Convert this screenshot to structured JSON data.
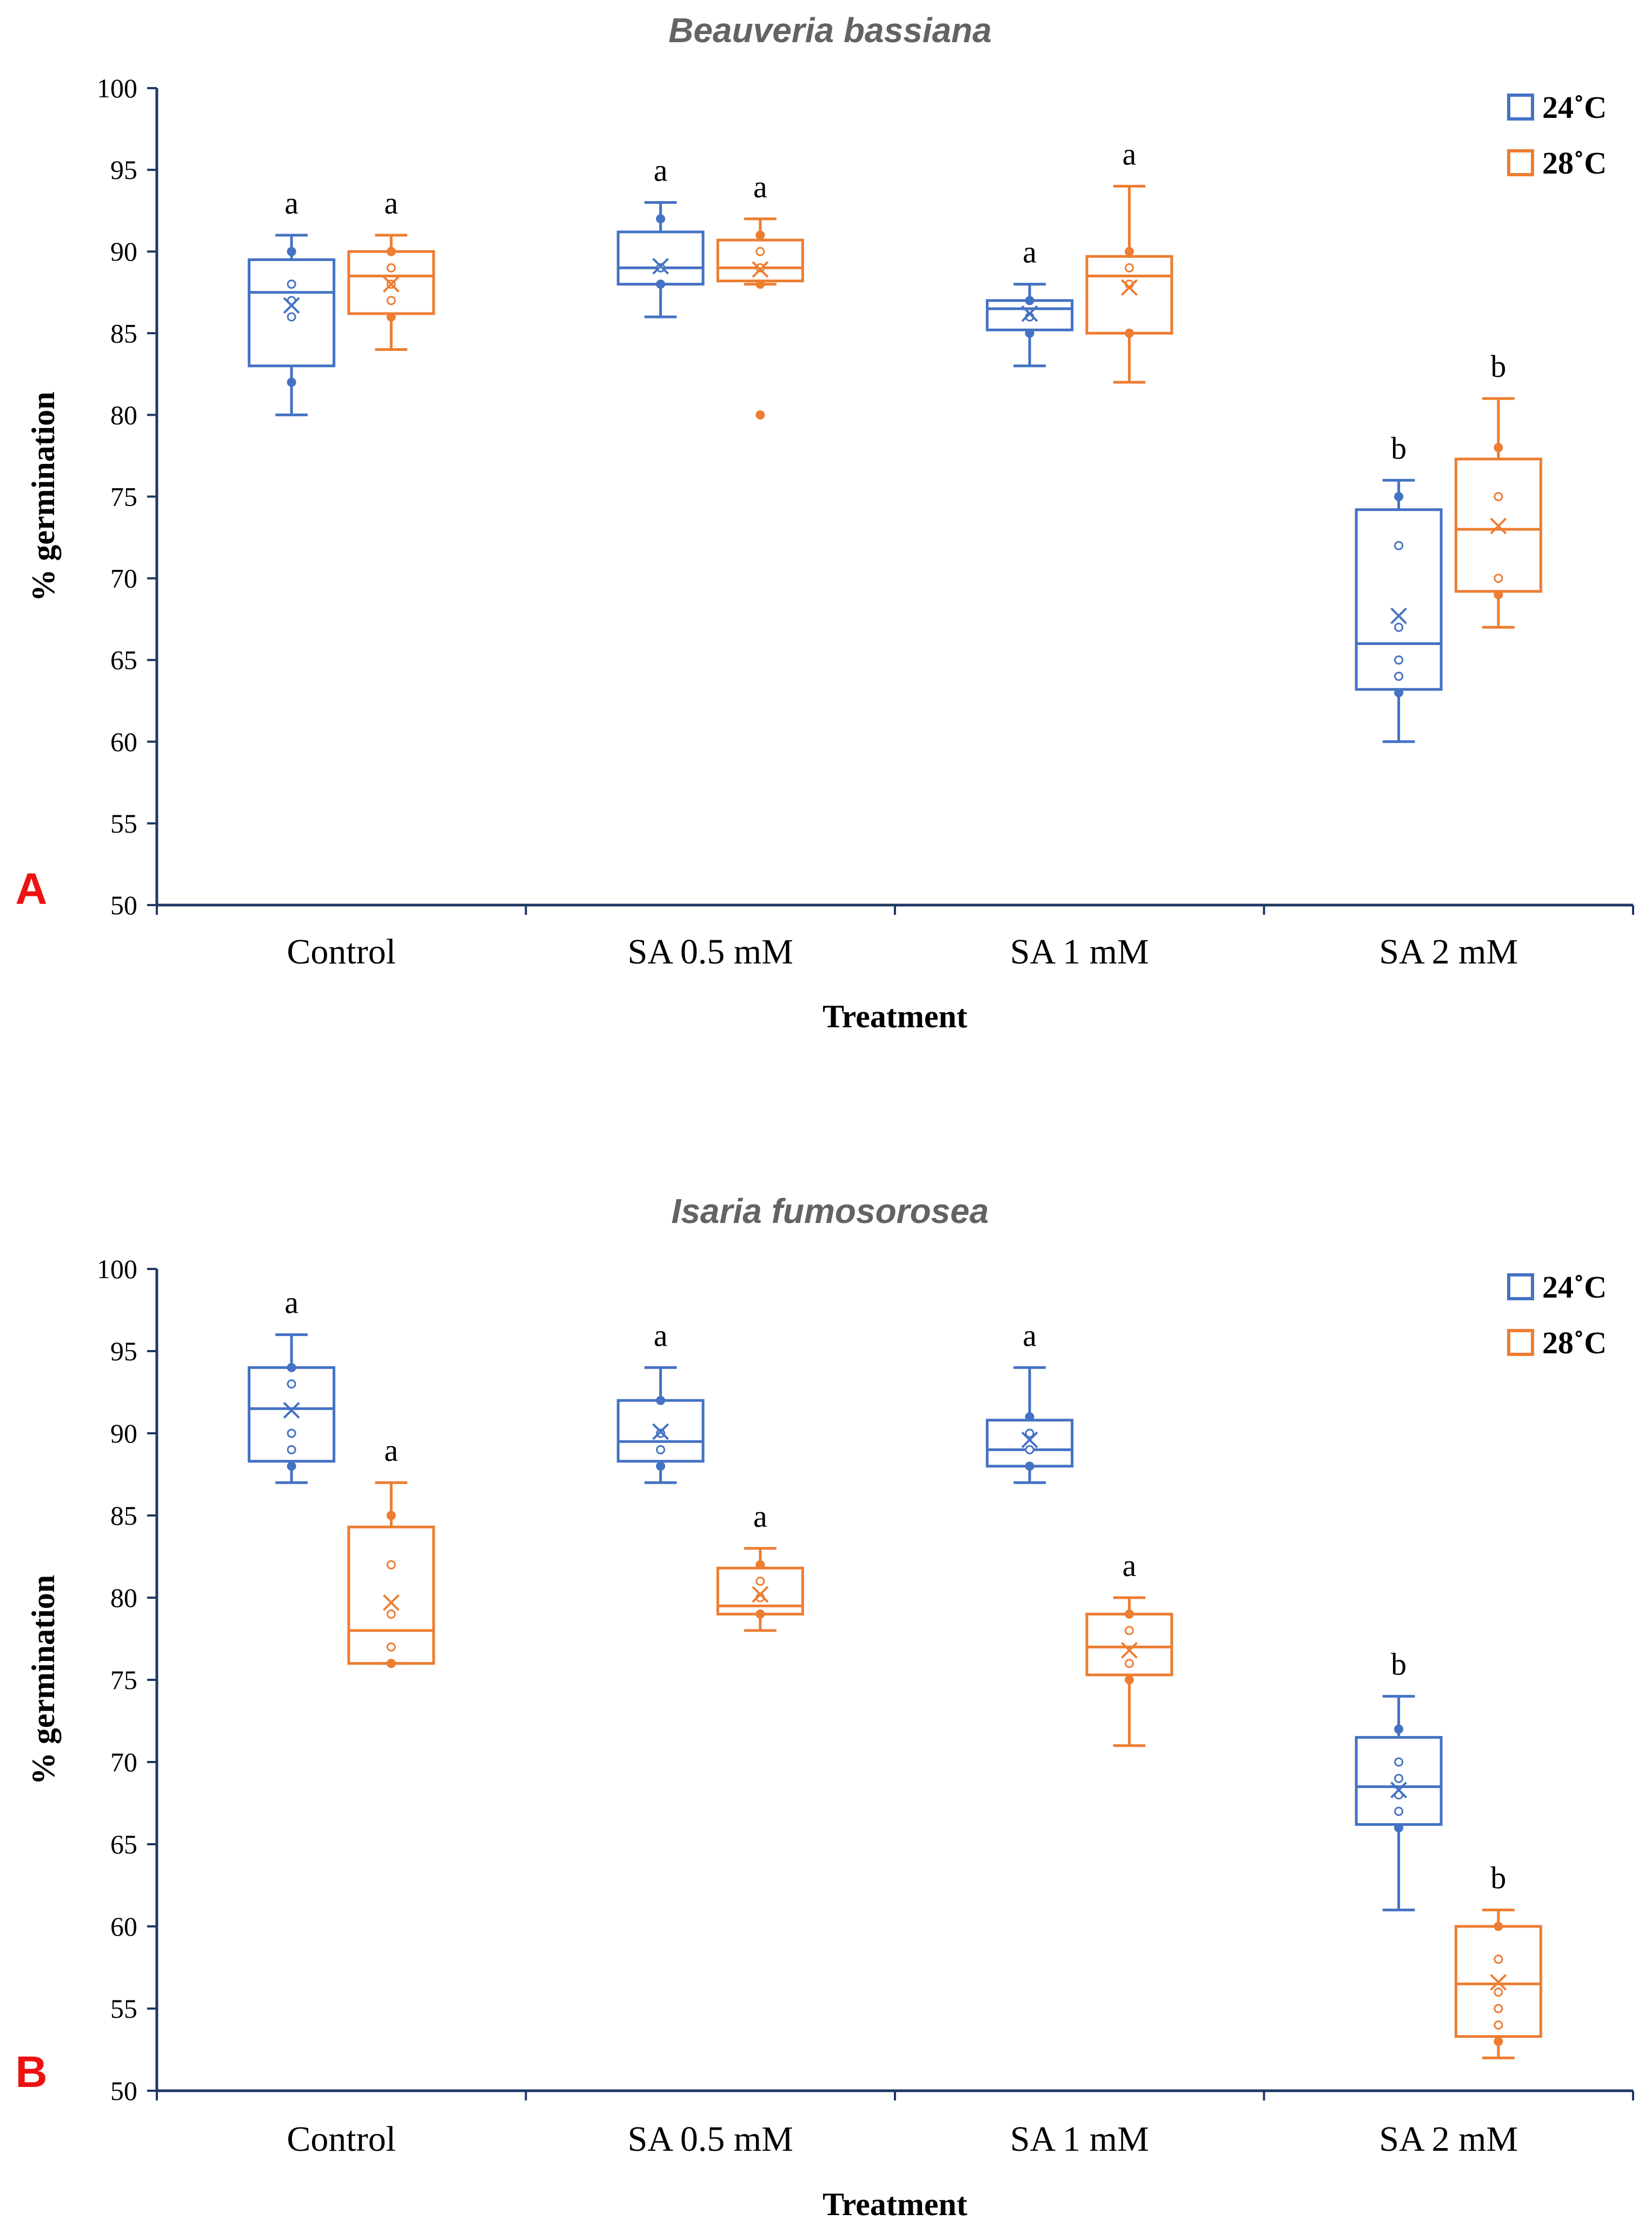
{
  "colors": {
    "series_24": "#4472C4",
    "series_28": "#ED7D31",
    "axis": "#1F3864"
  },
  "chart_data": [
    {
      "type": "box",
      "panel_label": "A",
      "title": "Beauveria bassiana",
      "xlabel": "Treatment",
      "ylabel": "% germination",
      "ylim": [
        50,
        100
      ],
      "yticks": [
        50,
        55,
        60,
        65,
        70,
        75,
        80,
        85,
        90,
        95,
        100
      ],
      "categories": [
        "Control",
        "SA 0.5 mM",
        "SA 1 mM",
        "SA 2 mM"
      ],
      "legend_position": "top-right",
      "series": [
        {
          "name": "24˚C",
          "boxes": [
            {
              "q1": 83,
              "median": 87.5,
              "q3": 89.5,
              "min": 80,
              "max": 91,
              "mean": 86.7,
              "points": [
                82,
                86,
                87,
                88,
                90
              ],
              "letter": "a"
            },
            {
              "q1": 88,
              "median": 89,
              "q3": 91.2,
              "min": 86,
              "max": 93,
              "mean": 89.1,
              "points": [
                88,
                89,
                92
              ],
              "letter": "a"
            },
            {
              "q1": 85.2,
              "median": 86.5,
              "q3": 87,
              "min": 83,
              "max": 88,
              "mean": 86.2,
              "points": [
                85,
                86,
                87
              ],
              "letter": "a"
            },
            {
              "q1": 63.2,
              "median": 66,
              "q3": 74.2,
              "min": 60,
              "max": 76,
              "mean": 67.7,
              "points": [
                63,
                64,
                65,
                67,
                72,
                75
              ],
              "letter": "b"
            }
          ]
        },
        {
          "name": "28˚C",
          "boxes": [
            {
              "q1": 86.2,
              "median": 88.5,
              "q3": 90,
              "min": 84,
              "max": 91,
              "mean": 88.0,
              "points": [
                86,
                87,
                88,
                89,
                90
              ],
              "letter": "a"
            },
            {
              "q1": 88.2,
              "median": 89,
              "q3": 90.7,
              "min": 88,
              "max": 92,
              "mean": 88.9,
              "points": [
                80,
                88,
                89,
                90,
                91
              ],
              "letter": "a"
            },
            {
              "q1": 85,
              "median": 88.5,
              "q3": 89.7,
              "min": 82,
              "max": 94,
              "mean": 87.8,
              "points": [
                85,
                88,
                89,
                90
              ],
              "letter": "a"
            },
            {
              "q1": 69.2,
              "median": 73,
              "q3": 77.3,
              "min": 67,
              "max": 81,
              "mean": 73.2,
              "points": [
                69,
                70,
                75,
                78
              ],
              "letter": "b"
            }
          ]
        }
      ]
    },
    {
      "type": "box",
      "panel_label": "B",
      "title": "Isaria fumosorosea",
      "xlabel": "Treatment",
      "ylabel": "% germination",
      "ylim": [
        50,
        100
      ],
      "yticks": [
        50,
        55,
        60,
        65,
        70,
        75,
        80,
        85,
        90,
        95,
        100
      ],
      "categories": [
        "Control",
        "SA 0.5 mM",
        "SA 1 mM",
        "SA 2 mM"
      ],
      "legend_position": "top-right",
      "series": [
        {
          "name": "24˚C",
          "boxes": [
            {
              "q1": 88.3,
              "median": 91.5,
              "q3": 94,
              "min": 87,
              "max": 96,
              "mean": 91.4,
              "points": [
                88,
                89,
                90,
                93,
                94
              ],
              "letter": "a"
            },
            {
              "q1": 88.3,
              "median": 89.5,
              "q3": 92,
              "min": 87,
              "max": 94,
              "mean": 90.1,
              "points": [
                88,
                89,
                90,
                92
              ],
              "letter": "a"
            },
            {
              "q1": 88,
              "median": 89,
              "q3": 90.8,
              "min": 87,
              "max": 94,
              "mean": 89.6,
              "points": [
                88,
                89,
                90,
                91
              ],
              "letter": "a"
            },
            {
              "q1": 66.2,
              "median": 68.5,
              "q3": 71.5,
              "min": 61,
              "max": 74,
              "mean": 68.3,
              "points": [
                66,
                67,
                68,
                69,
                70,
                72
              ],
              "letter": "b"
            }
          ]
        },
        {
          "name": "28˚C",
          "boxes": [
            {
              "q1": 76,
              "median": 78,
              "q3": 84.3,
              "min": 76,
              "max": 87,
              "mean": 79.7,
              "points": [
                76,
                77,
                79,
                82,
                85
              ],
              "letter": "a"
            },
            {
              "q1": 79,
              "median": 79.5,
              "q3": 81.8,
              "min": 78,
              "max": 83,
              "mean": 80.2,
              "points": [
                79,
                80,
                81,
                82
              ],
              "letter": "a"
            },
            {
              "q1": 75.3,
              "median": 77,
              "q3": 79,
              "min": 71,
              "max": 80,
              "mean": 76.8,
              "points": [
                75,
                76,
                78,
                79
              ],
              "letter": "a"
            },
            {
              "q1": 53.3,
              "median": 56.5,
              "q3": 60,
              "min": 52,
              "max": 61,
              "mean": 56.6,
              "points": [
                53,
                54,
                55,
                56,
                58,
                60
              ],
              "letter": "b"
            }
          ]
        }
      ]
    }
  ]
}
